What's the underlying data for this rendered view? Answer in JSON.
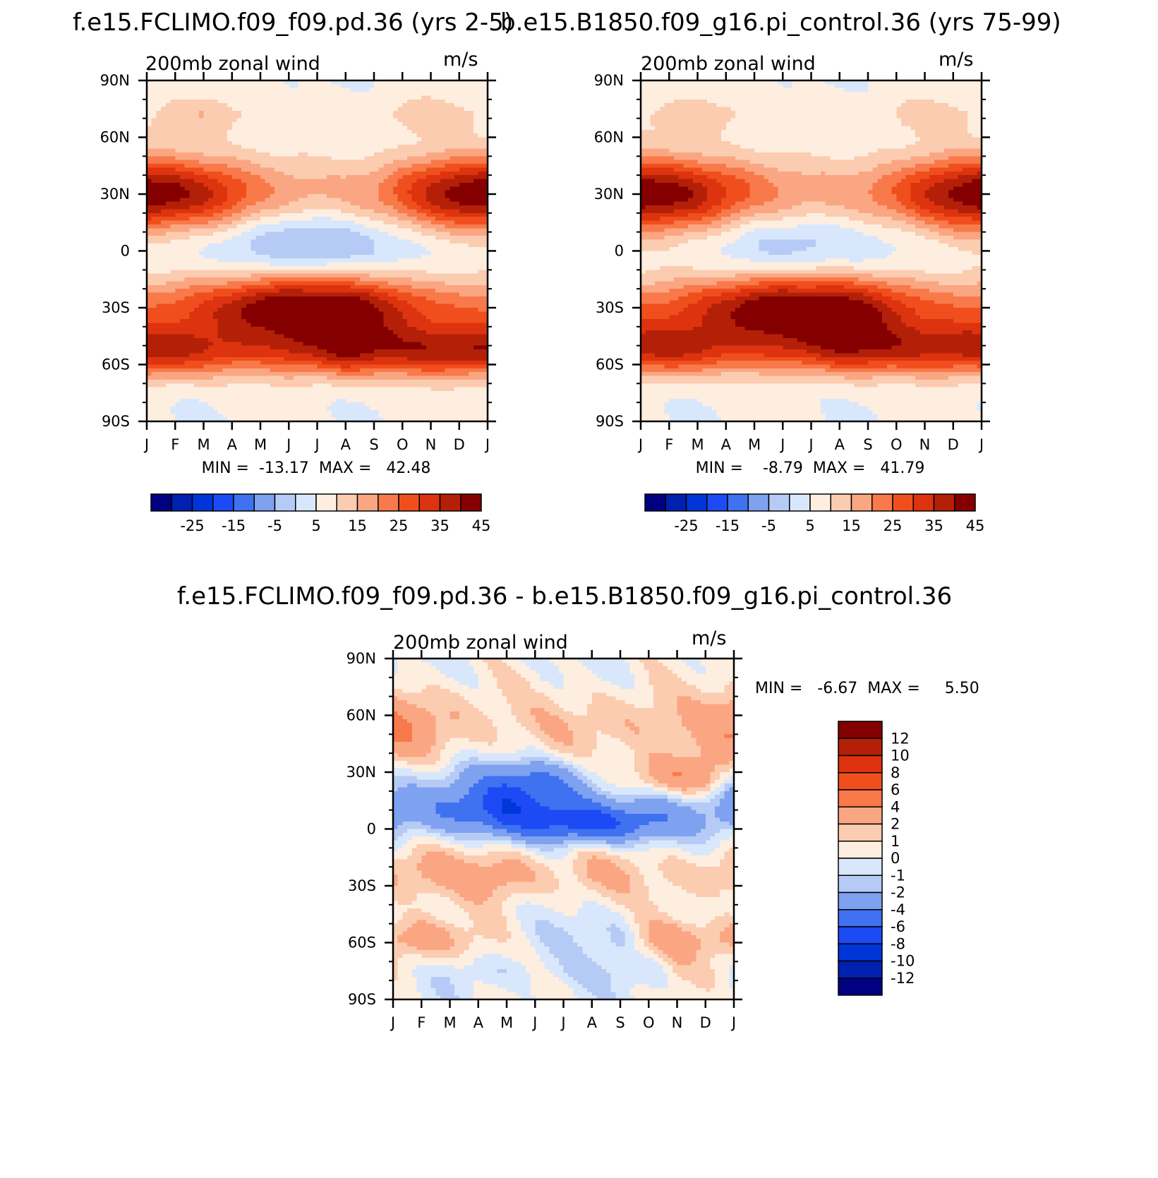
{
  "chart_data": [
    {
      "type": "heatmap",
      "title": "f.e15.FCLIMO.f09_f09.pd.36 (yrs 2-5)",
      "subtitle_left": "200mb zonal wind",
      "subtitle_right": "m/s",
      "x_ticks": [
        "J",
        "F",
        "M",
        "A",
        "M",
        "J",
        "J",
        "A",
        "S",
        "O",
        "N",
        "D",
        "J"
      ],
      "y_ticks": [
        "90N",
        "60N",
        "30N",
        "0",
        "30S",
        "60S",
        "90S"
      ],
      "ylim": [
        -90,
        90
      ],
      "min_label": "MIN =  -13.17  MAX =   42.48",
      "min": -13.17,
      "max": 42.48,
      "colorbar_labels": [
        "-25",
        "-15",
        "-5",
        "5",
        "15",
        "25",
        "35",
        "45"
      ],
      "features": [
        {
          "type": "jet",
          "lat": 30,
          "lat_width": 14,
          "amp": [
            40,
            37,
            33,
            26,
            18,
            13,
            11,
            12,
            16,
            24,
            32,
            38,
            40
          ]
        },
        {
          "type": "jet",
          "lat": -30,
          "lat_width": 12,
          "amp": [
            18,
            20,
            24,
            30,
            38,
            42,
            42,
            40,
            33,
            26,
            20,
            18,
            18
          ]
        },
        {
          "type": "jet",
          "lat": -53,
          "lat_width": 10,
          "amp": [
            32,
            30,
            26,
            22,
            20,
            24,
            27,
            33,
            30,
            29,
            31,
            32,
            32
          ]
        },
        {
          "type": "easterly",
          "lat": 5,
          "lat_width": 12,
          "amp": [
            -2,
            -4,
            -5,
            -7,
            -10,
            -12,
            -13,
            -12,
            -9,
            -6,
            -3,
            -2,
            -2
          ]
        },
        {
          "type": "polar",
          "lat": 72,
          "lat_width": 8,
          "amp": [
            4,
            8,
            10,
            6,
            3,
            2,
            2,
            2,
            4,
            6,
            8,
            6,
            4
          ]
        }
      ],
      "legend_colors": [
        "#000080",
        "#0020b0",
        "#0036d8",
        "#1c4af5",
        "#3f71f0",
        "#7ea1f0",
        "#b5cbf6",
        "#d8e7fb",
        "#fdeee0",
        "#fcccb0",
        "#fba683",
        "#f8794a",
        "#f04f1d",
        "#dd330f",
        "#b42007",
        "#840000"
      ]
    },
    {
      "type": "heatmap",
      "title": "b.e15.B1850.f09_g16.pi_control.36 (yrs 75-99)",
      "subtitle_left": "200mb zonal wind",
      "subtitle_right": "m/s",
      "x_ticks": [
        "J",
        "F",
        "M",
        "A",
        "M",
        "J",
        "J",
        "A",
        "S",
        "O",
        "N",
        "D",
        "J"
      ],
      "y_ticks": [
        "90N",
        "60N",
        "30N",
        "0",
        "30S",
        "60S",
        "90S"
      ],
      "ylim": [
        -90,
        90
      ],
      "min_label": "MIN =    -8.79  MAX =   41.79",
      "min": -8.79,
      "max": 41.79,
      "colorbar_labels": [
        "-25",
        "-15",
        "-5",
        "5",
        "15",
        "25",
        "35",
        "45"
      ],
      "features": [
        {
          "type": "jet",
          "lat": 30,
          "lat_width": 14,
          "amp": [
            40,
            38,
            34,
            27,
            20,
            15,
            12,
            13,
            16,
            22,
            30,
            36,
            40
          ]
        },
        {
          "type": "jet",
          "lat": -30,
          "lat_width": 12,
          "amp": [
            18,
            20,
            24,
            30,
            38,
            41,
            41,
            39,
            33,
            26,
            20,
            18,
            18
          ]
        },
        {
          "type": "jet",
          "lat": -52,
          "lat_width": 10,
          "amp": [
            30,
            30,
            27,
            22,
            20,
            22,
            25,
            30,
            30,
            28,
            28,
            30,
            30
          ]
        },
        {
          "type": "easterly",
          "lat": 5,
          "lat_width": 12,
          "amp": [
            0,
            -1,
            -3,
            -5,
            -8,
            -9,
            -9,
            -8,
            -6,
            -4,
            -2,
            0,
            0
          ]
        },
        {
          "type": "polar",
          "lat": 72,
          "lat_width": 8,
          "amp": [
            4,
            7,
            9,
            6,
            3,
            2,
            2,
            2,
            3,
            5,
            7,
            6,
            4
          ]
        }
      ],
      "legend_colors": [
        "#000080",
        "#0020b0",
        "#0036d8",
        "#1c4af5",
        "#3f71f0",
        "#7ea1f0",
        "#b5cbf6",
        "#d8e7fb",
        "#fdeee0",
        "#fcccb0",
        "#fba683",
        "#f8794a",
        "#f04f1d",
        "#dd330f",
        "#b42007",
        "#840000"
      ]
    },
    {
      "type": "heatmap",
      "title": "f.e15.FCLIMO.f09_f09.pd.36 - b.e15.B1850.f09_g16.pi_control.36",
      "subtitle_left": "200mb zonal wind",
      "subtitle_right": "m/s",
      "x_ticks": [
        "J",
        "F",
        "M",
        "A",
        "M",
        "J",
        "J",
        "A",
        "S",
        "O",
        "N",
        "D",
        "J"
      ],
      "y_ticks": [
        "90N",
        "60N",
        "30N",
        "0",
        "30S",
        "60S",
        "90S"
      ],
      "ylim": [
        -90,
        90
      ],
      "min_label": "MIN =   -6.67  MAX =     5.50",
      "min": -6.67,
      "max": 5.5,
      "colorbar_labels": [
        "12",
        "10",
        "8",
        "6",
        "4",
        "2",
        "1",
        "0",
        "-1",
        "-2",
        "-4",
        "-6",
        "-8",
        "-10",
        "-12"
      ],
      "colorbar_levels": [
        -12,
        -10,
        -8,
        -6,
        -4,
        -2,
        -1,
        0,
        1,
        2,
        4,
        6,
        8,
        10,
        12
      ],
      "features": [
        {
          "type": "band",
          "lat": 55,
          "lat_width": 14,
          "amp": [
            4,
            3.5,
            2.5,
            1.5,
            1,
            1,
            1.5,
            2,
            2,
            2,
            1.5,
            2,
            4
          ]
        },
        {
          "type": "band",
          "lat": 27,
          "lat_width": 8,
          "amp": [
            -1,
            -1,
            -1,
            -1.5,
            -3,
            -4,
            -3,
            -1,
            1,
            3,
            4,
            3,
            -1
          ]
        },
        {
          "type": "band",
          "lat": 12,
          "lat_width": 9,
          "amp": [
            -3,
            -3,
            -4,
            -5,
            -6,
            -5,
            -4,
            -3,
            -2,
            -2,
            -2,
            -2,
            -3
          ]
        },
        {
          "type": "band",
          "lat": 2,
          "lat_width": 7,
          "amp": [
            -1,
            -1,
            -1,
            -1,
            -2,
            -3,
            -5,
            -6,
            -5,
            -3,
            -1,
            -1,
            -1
          ]
        },
        {
          "type": "band",
          "lat": -24,
          "lat_width": 10,
          "amp": [
            2.5,
            2.5,
            2,
            2.5,
            3,
            2,
            1.5,
            2,
            1.5,
            1,
            1.5,
            2,
            2.5
          ]
        },
        {
          "type": "band",
          "lat": -58,
          "lat_width": 8,
          "amp": [
            3,
            3.5,
            2,
            1,
            0,
            -0.5,
            -0.5,
            -0.5,
            -1,
            1.5,
            2.5,
            2.5,
            3
          ]
        },
        {
          "type": "band",
          "lat": -75,
          "lat_width": 6,
          "amp": [
            0.5,
            0.5,
            -0.5,
            -1,
            -1,
            -0.5,
            -0.5,
            -0.5,
            -1,
            -1,
            0.5,
            0.5,
            0.5
          ]
        }
      ],
      "legend_colors": [
        "#000080",
        "#0020b0",
        "#0036d8",
        "#1c4af5",
        "#3f71f0",
        "#7ea1f0",
        "#b5cbf6",
        "#d8e7fb",
        "#fdeee0",
        "#fcccb0",
        "#fba683",
        "#f8794a",
        "#f04f1d",
        "#dd330f",
        "#b42007",
        "#840000"
      ]
    }
  ]
}
